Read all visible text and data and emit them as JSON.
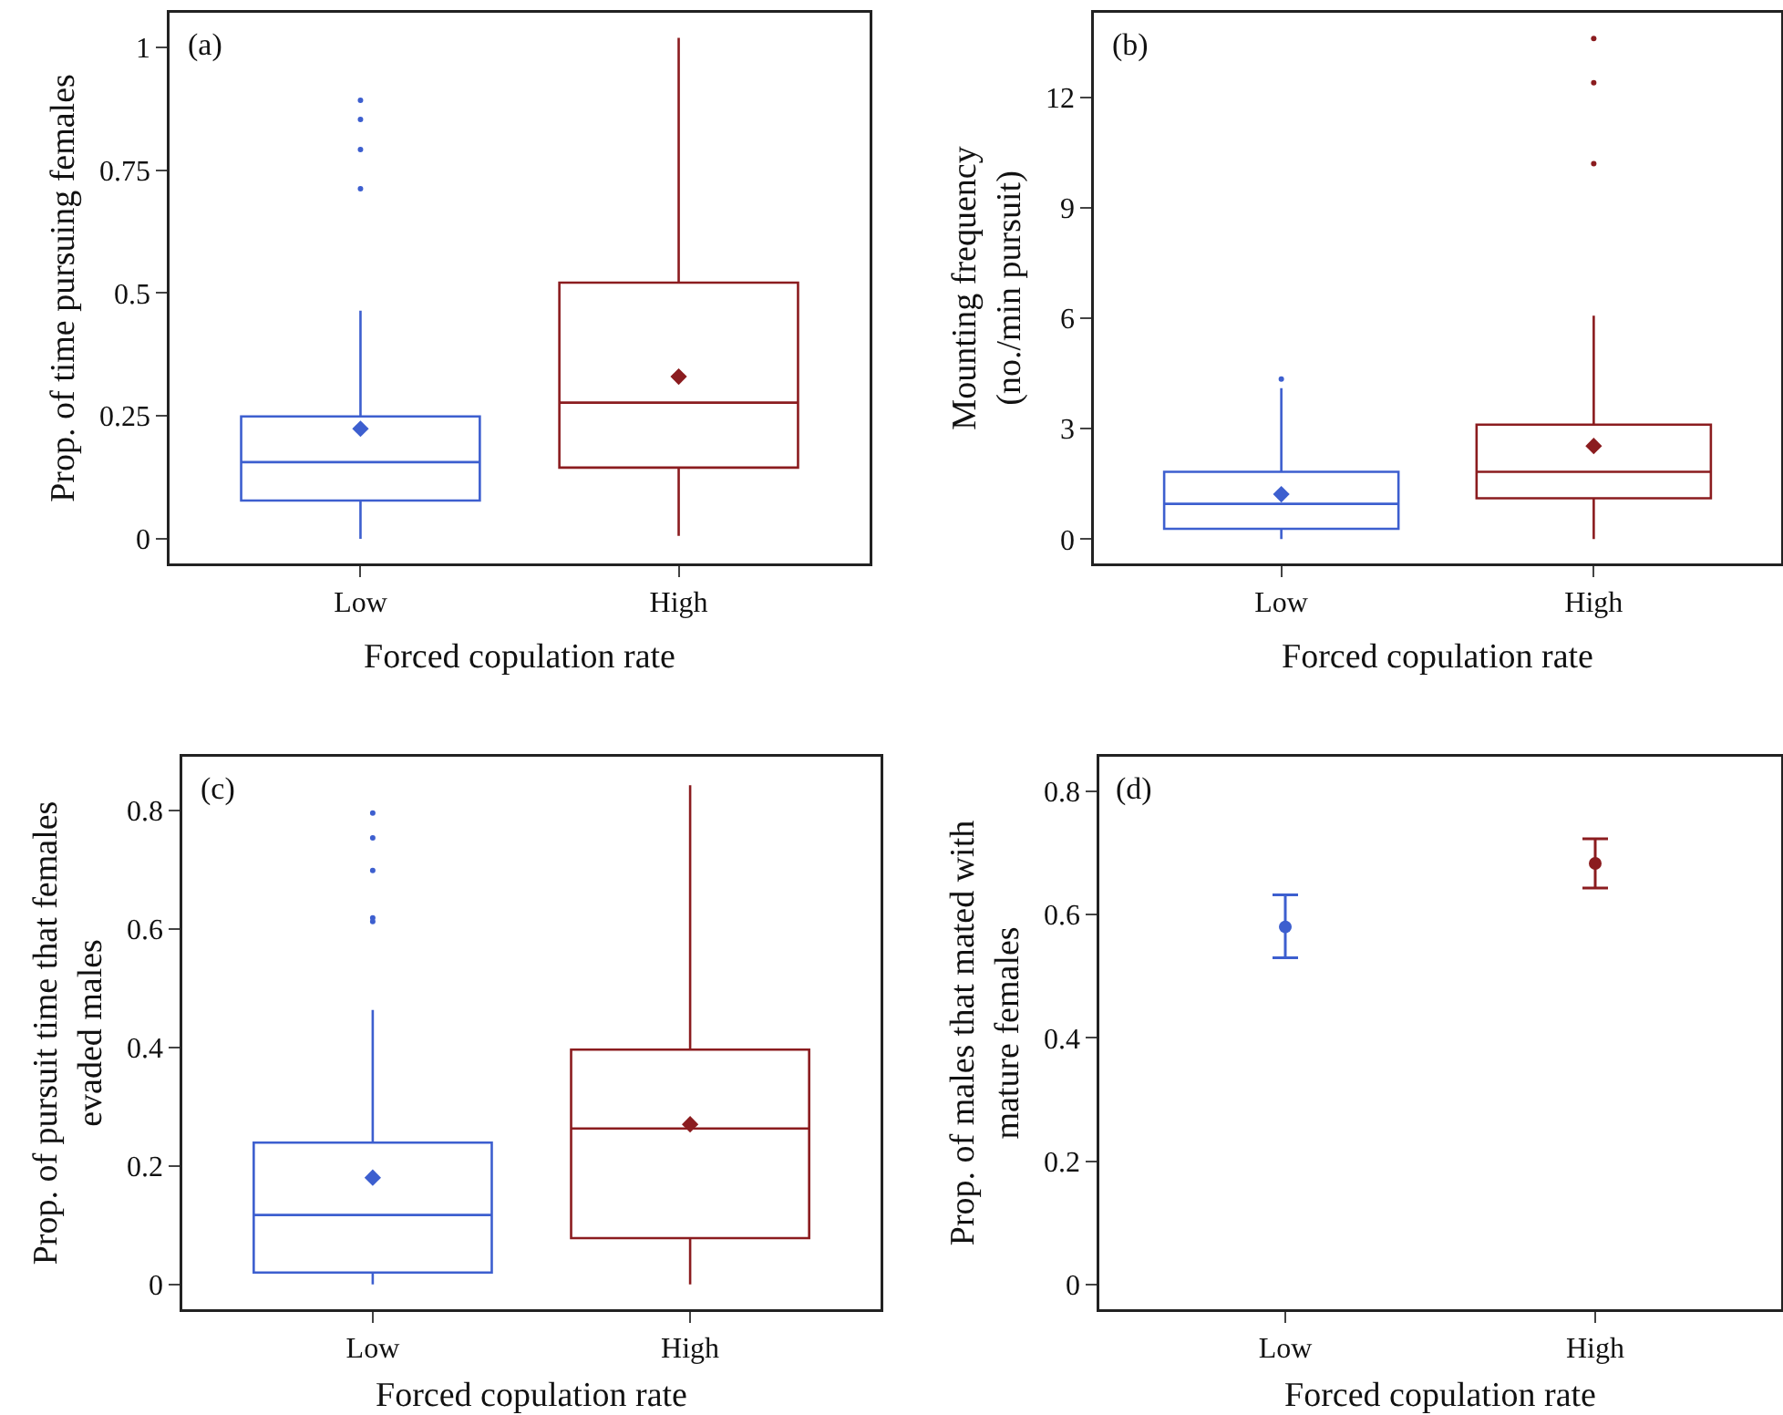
{
  "chart_data": [
    {
      "type": "box",
      "title": "(a)",
      "xlabel": "Forced copulation rate",
      "ylabel": "Prop. of time pursuing females",
      "categories": [
        "Low",
        "High"
      ],
      "colors": [
        "#3d5fcf",
        "#8b1c1f"
      ],
      "marker": "diamond",
      "boxes": [
        {
          "low": 0,
          "q1": 0.078,
          "median": 0.156,
          "q3": 0.249,
          "high": 0.464,
          "mean": 0.224,
          "outliers": [
            0.892,
            0.853,
            0.792,
            0.712
          ]
        },
        {
          "low": 0.006,
          "q1": 0.145,
          "median": 0.277,
          "q3": 0.521,
          "high": 1.019,
          "mean": 0.33
        }
      ],
      "ylim": [
        -0.05,
        1.07
      ],
      "yticks": [
        0,
        0.25,
        0.5,
        0.75,
        1
      ],
      "grid": false,
      "legend": false
    },
    {
      "type": "box",
      "title": "(b)",
      "xlabel": "Forced copulation rate",
      "ylabel": "Mounting frequency\n(no./min pursuit)",
      "categories": [
        "Low",
        "High"
      ],
      "colors": [
        "#3d5fcf",
        "#8b1c1f"
      ],
      "marker": "diamond",
      "boxes": [
        {
          "low": 0,
          "q1": 0.28,
          "median": 0.96,
          "q3": 1.83,
          "high": 4.1,
          "mean": 1.22,
          "outliers": [
            4.35
          ]
        },
        {
          "low": 0,
          "q1": 1.11,
          "median": 1.83,
          "q3": 3.11,
          "high": 6.07,
          "mean": 2.53,
          "outliers": [
            13.6,
            12.4,
            10.2
          ]
        }
      ],
      "ylim": [
        -0.66,
        14.3
      ],
      "yticks": [
        0,
        3,
        6,
        9,
        12
      ],
      "grid": false,
      "legend": false
    },
    {
      "type": "box",
      "title": "(c)",
      "xlabel": "Forced copulation rate",
      "ylabel": "Prop. of pursuit time that females\nevaded males",
      "categories": [
        "Low",
        "High"
      ],
      "colors": [
        "#3d5fcf",
        "#8b1c1f"
      ],
      "marker": "diamond",
      "boxes": [
        {
          "low": 0,
          "q1": 0.02,
          "median": 0.117,
          "q3": 0.239,
          "high": 0.463,
          "mean": 0.18,
          "outliers": [
            0.795,
            0.753,
            0.698,
            0.618,
            0.612
          ]
        },
        {
          "low": 0,
          "q1": 0.078,
          "median": 0.263,
          "q3": 0.396,
          "high": 0.842,
          "mean": 0.27
        }
      ],
      "ylim": [
        -0.042,
        0.89
      ],
      "yticks": [
        0,
        0.2,
        0.4,
        0.6,
        0.8
      ],
      "grid": false,
      "legend": false
    },
    {
      "type": "scatter",
      "title": "(d)",
      "xlabel": "Forced copulation rate",
      "ylabel": "Prop. of males that mated with\nmature females",
      "categories": [
        "Low",
        "High"
      ],
      "colors": [
        "#3d5fcf",
        "#8b1c1f"
      ],
      "marker": "circle",
      "values": [
        0.58,
        0.683
      ],
      "errors": [
        [
          0.53,
          0.632
        ],
        [
          0.643,
          0.723
        ]
      ],
      "ylim": [
        -0.04,
        0.856
      ],
      "yticks": [
        0,
        0.2,
        0.4,
        0.6,
        0.8
      ],
      "grid": false,
      "legend": false
    }
  ]
}
